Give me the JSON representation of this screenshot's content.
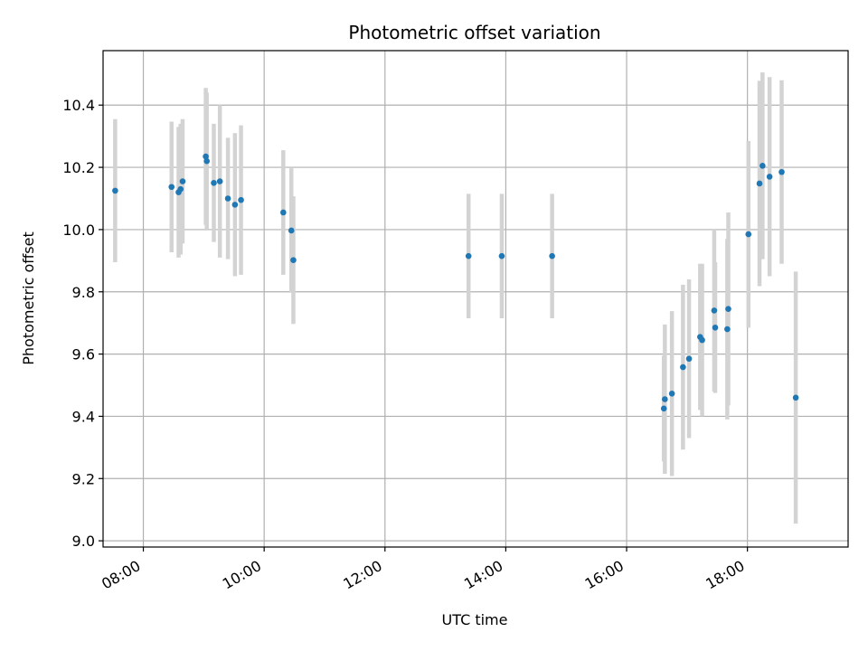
{
  "chart_data": {
    "type": "scatter",
    "title": "Photometric offset variation",
    "xlabel": "UTC time",
    "ylabel": "Photometric offset",
    "x_axis": {
      "kind": "time",
      "range": [
        "07:20",
        "19:40"
      ],
      "ticks": [
        "08:00",
        "10:00",
        "12:00",
        "14:00",
        "16:00",
        "18:00"
      ]
    },
    "y_axis": {
      "range": [
        8.98,
        10.575
      ],
      "ticks": [
        "9.0",
        "9.2",
        "9.4",
        "9.6",
        "9.8",
        "10.0",
        "10.2",
        "10.4"
      ]
    },
    "grid": true,
    "colors": {
      "point": "#1f77b4",
      "errorbar": "#d3d3d3",
      "grid": "#b0b0b0"
    },
    "points": [
      {
        "x": "07:32",
        "y": 10.125,
        "err": 0.23
      },
      {
        "x": "08:28",
        "y": 10.137,
        "err": 0.21
      },
      {
        "x": "08:35",
        "y": 10.12,
        "err": 0.21
      },
      {
        "x": "08:37",
        "y": 10.13,
        "err": 0.21
      },
      {
        "x": "08:39",
        "y": 10.155,
        "err": 0.2
      },
      {
        "x": "09:02",
        "y": 10.235,
        "err": 0.22
      },
      {
        "x": "09:03",
        "y": 10.22,
        "err": 0.22
      },
      {
        "x": "09:10",
        "y": 10.15,
        "err": 0.19
      },
      {
        "x": "09:16",
        "y": 10.155,
        "err": 0.245
      },
      {
        "x": "09:24",
        "y": 10.1,
        "err": 0.195
      },
      {
        "x": "09:31",
        "y": 10.08,
        "err": 0.23
      },
      {
        "x": "09:37",
        "y": 10.095,
        "err": 0.24
      },
      {
        "x": "10:19",
        "y": 10.055,
        "err": 0.2
      },
      {
        "x": "10:27",
        "y": 9.997,
        "err": 0.2
      },
      {
        "x": "10:29",
        "y": 9.902,
        "err": 0.205
      },
      {
        "x": "13:23",
        "y": 9.915,
        "err": 0.2
      },
      {
        "x": "13:56",
        "y": 9.915,
        "err": 0.2
      },
      {
        "x": "14:46",
        "y": 9.915,
        "err": 0.2
      },
      {
        "x": "16:37",
        "y": 9.425,
        "err": 0.17
      },
      {
        "x": "16:38",
        "y": 9.455,
        "err": 0.24
      },
      {
        "x": "16:45",
        "y": 9.473,
        "err": 0.265
      },
      {
        "x": "16:56",
        "y": 9.558,
        "err": 0.265
      },
      {
        "x": "17:02",
        "y": 9.585,
        "err": 0.255
      },
      {
        "x": "17:13",
        "y": 9.655,
        "err": 0.235
      },
      {
        "x": "17:15",
        "y": 9.645,
        "err": 0.245
      },
      {
        "x": "17:27",
        "y": 9.74,
        "err": 0.26
      },
      {
        "x": "17:28",
        "y": 9.685,
        "err": 0.21
      },
      {
        "x": "17:40",
        "y": 9.68,
        "err": 0.29
      },
      {
        "x": "17:41",
        "y": 9.745,
        "err": 0.31
      },
      {
        "x": "18:01",
        "y": 9.985,
        "err": 0.3
      },
      {
        "x": "18:12",
        "y": 10.148,
        "err": 0.33
      },
      {
        "x": "18:15",
        "y": 10.205,
        "err": 0.3
      },
      {
        "x": "18:22",
        "y": 10.17,
        "err": 0.32
      },
      {
        "x": "18:34",
        "y": 10.185,
        "err": 0.295
      },
      {
        "x": "18:48",
        "y": 9.46,
        "err": 0.405
      }
    ]
  }
}
